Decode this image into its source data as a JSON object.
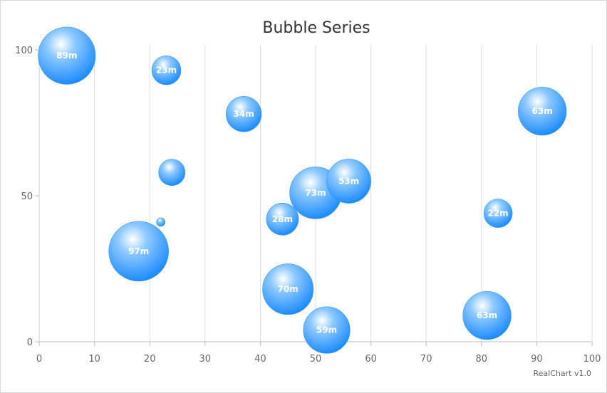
{
  "chart_data": {
    "type": "bubble",
    "title": "Bubble Series",
    "xlabel": "",
    "ylabel": "",
    "xlim": [
      0,
      100
    ],
    "ylim": [
      0,
      100
    ],
    "x_ticks": [
      0,
      10,
      20,
      30,
      40,
      50,
      60,
      70,
      80,
      90,
      100
    ],
    "y_ticks": [
      0,
      50,
      100
    ],
    "vertical_grid": true,
    "horizontal_grid": false,
    "bubble_color": "#3399ff",
    "points": [
      {
        "x": 5,
        "y": 98,
        "size": 89,
        "label": "89m"
      },
      {
        "x": 23,
        "y": 93,
        "size": 23,
        "label": "23m"
      },
      {
        "x": 37,
        "y": 78,
        "size": 34,
        "label": "34m"
      },
      {
        "x": 91,
        "y": 79,
        "size": 63,
        "label": "63m"
      },
      {
        "x": 24,
        "y": 58,
        "size": 19,
        "label": ""
      },
      {
        "x": 50,
        "y": 51,
        "size": 73,
        "label": "73m"
      },
      {
        "x": 56,
        "y": 55,
        "size": 53,
        "label": "53m"
      },
      {
        "x": 44,
        "y": 42,
        "size": 28,
        "label": "28m"
      },
      {
        "x": 83,
        "y": 44,
        "size": 22,
        "label": "22m"
      },
      {
        "x": 22,
        "y": 41,
        "size": 2,
        "label": ""
      },
      {
        "x": 18,
        "y": 31,
        "size": 97,
        "label": "97m"
      },
      {
        "x": 45,
        "y": 18,
        "size": 70,
        "label": "70m"
      },
      {
        "x": 52,
        "y": 4,
        "size": 59,
        "label": "59m"
      },
      {
        "x": 81,
        "y": 9,
        "size": 63,
        "label": "63m"
      }
    ]
  },
  "credit": "RealChart v1.0"
}
